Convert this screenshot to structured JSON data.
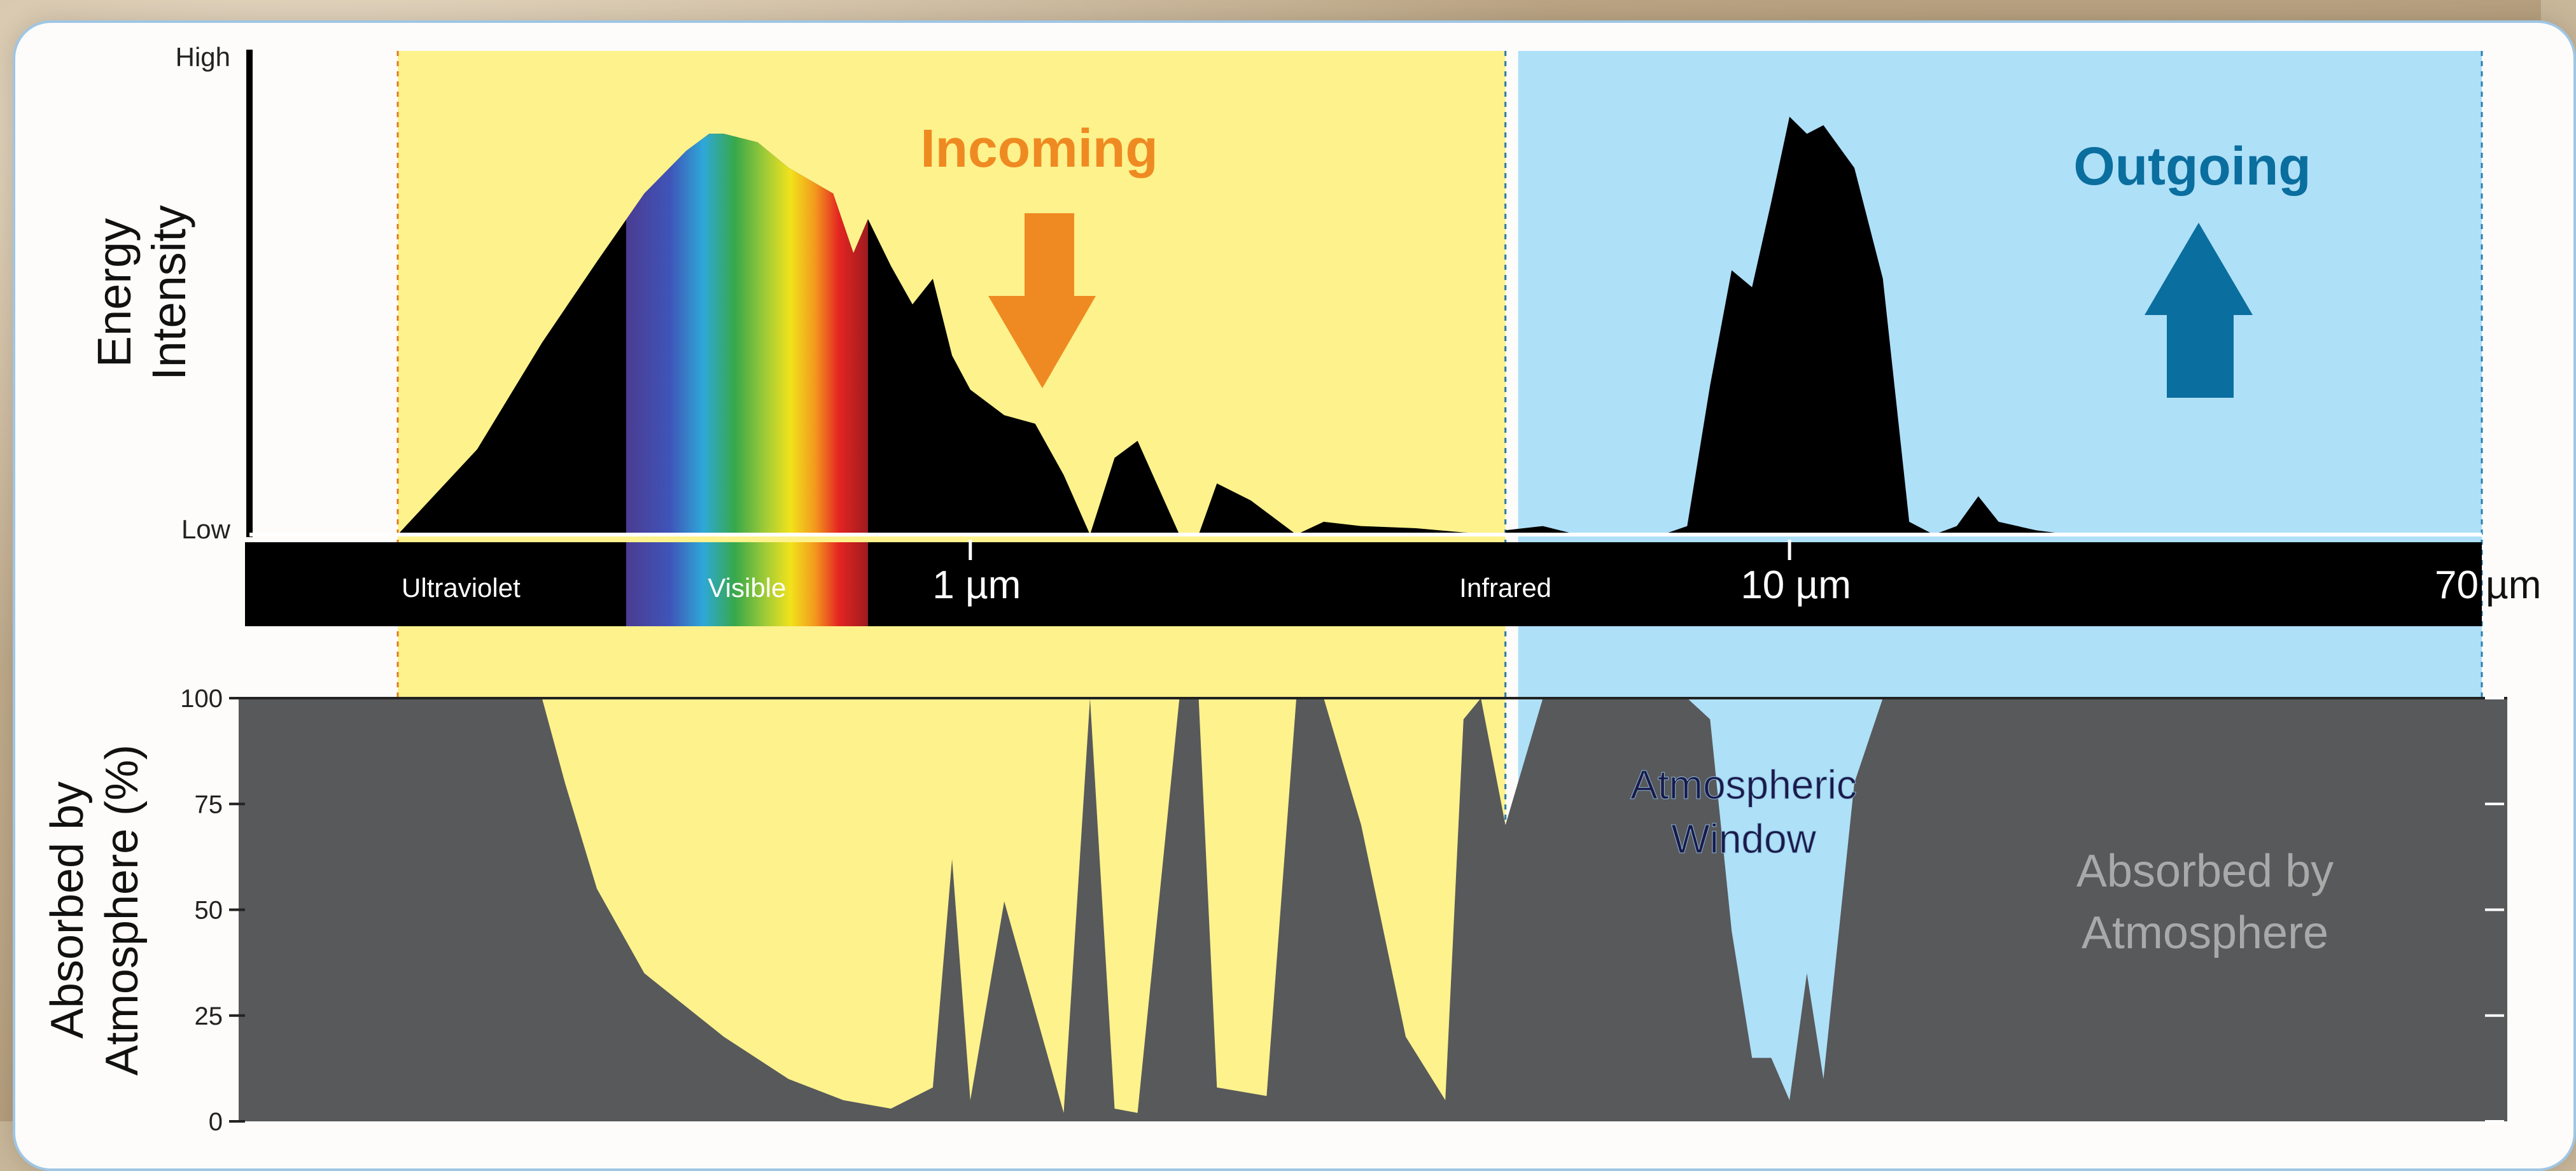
{
  "chart_data": [
    {
      "type": "area",
      "panel": "emission-spectrum",
      "ylabel": "Energy Intensity",
      "y_ticks": [
        "High",
        "Low"
      ],
      "x_scale": "log",
      "x_unit": "µm",
      "x_ticks": [
        "1 µm",
        "10 µm",
        "70 µm"
      ],
      "band_labels": [
        "Ultraviolet",
        "Visible",
        "Infrared"
      ],
      "annotations": [
        "Incoming",
        "Outgoing"
      ],
      "series": [
        {
          "name": "Incoming",
          "x": [
            0.2,
            0.25,
            0.3,
            0.35,
            0.4,
            0.45,
            0.48,
            0.5,
            0.55,
            0.6,
            0.68,
            0.72,
            0.75,
            0.8,
            0.85,
            0.9,
            0.95,
            1.0,
            1.1,
            1.2,
            1.3,
            1.4,
            1.5,
            1.6,
            1.8,
            1.9,
            2.0,
            2.2,
            2.5,
            2.7,
            3.0,
            3.5,
            4.0,
            4.5
          ],
          "y": [
            0,
            0.2,
            0.45,
            0.64,
            0.8,
            0.9,
            0.94,
            0.94,
            0.92,
            0.86,
            0.8,
            0.66,
            0.74,
            0.63,
            0.54,
            0.6,
            0.42,
            0.34,
            0.28,
            0.26,
            0.14,
            0.0,
            0.18,
            0.22,
            0.0,
            0.0,
            0.12,
            0.08,
            0.0,
            0.03,
            0.02,
            0.015,
            0.005,
            0
          ]
        },
        {
          "name": "Outgoing",
          "x": [
            4.5,
            5.0,
            5.5,
            6.0,
            7.0,
            7.5,
            8.0,
            8.5,
            9.0,
            9.5,
            10.0,
            10.5,
            11.0,
            12.0,
            13.0,
            14.0,
            15.0,
            16.0,
            17.0,
            18.0,
            20.0,
            22.0
          ],
          "y": [
            0.01,
            0.02,
            0.0,
            0.0,
            0.0,
            0.02,
            0.35,
            0.62,
            0.58,
            0.78,
            0.98,
            0.94,
            0.96,
            0.86,
            0.6,
            0.03,
            0.0,
            0.02,
            0.09,
            0.03,
            0.01,
            0
          ]
        }
      ]
    },
    {
      "type": "area",
      "panel": "atmospheric-absorption",
      "ylabel": "Absorbed by Atmosphere (%)",
      "ylim": [
        0,
        100
      ],
      "y_ticks": [
        0,
        25,
        50,
        75,
        100
      ],
      "x_scale": "log",
      "annotations": [
        "Absorbed by Atmosphere",
        "Atmospheric Window"
      ],
      "series": [
        {
          "name": "Absorbed by Atmosphere",
          "x": [
            0.2,
            0.3,
            0.32,
            0.35,
            0.4,
            0.5,
            0.6,
            0.7,
            0.8,
            0.9,
            0.95,
            1.0,
            1.1,
            1.3,
            1.4,
            1.5,
            1.6,
            1.8,
            1.9,
            2.0,
            2.3,
            2.5,
            2.7,
            3.0,
            3.4,
            3.8,
            4.0,
            4.2,
            4.5,
            5.0,
            6.0,
            7.0,
            7.5,
            8.0,
            8.5,
            9.0,
            9.5,
            10.0,
            10.5,
            11.0,
            12.0,
            13.0,
            14.0,
            15.0,
            17.0,
            20.0,
            30.0,
            70.0
          ],
          "y": [
            100,
            100,
            80,
            55,
            35,
            20,
            10,
            5,
            3,
            8,
            62,
            5,
            52,
            2,
            100,
            3,
            2,
            100,
            100,
            8,
            6,
            100,
            100,
            70,
            20,
            5,
            95,
            100,
            70,
            100,
            100,
            100,
            100,
            95,
            45,
            15,
            15,
            5,
            35,
            10,
            80,
            100,
            100,
            100,
            100,
            100,
            100,
            100
          ]
        }
      ]
    }
  ]
}
